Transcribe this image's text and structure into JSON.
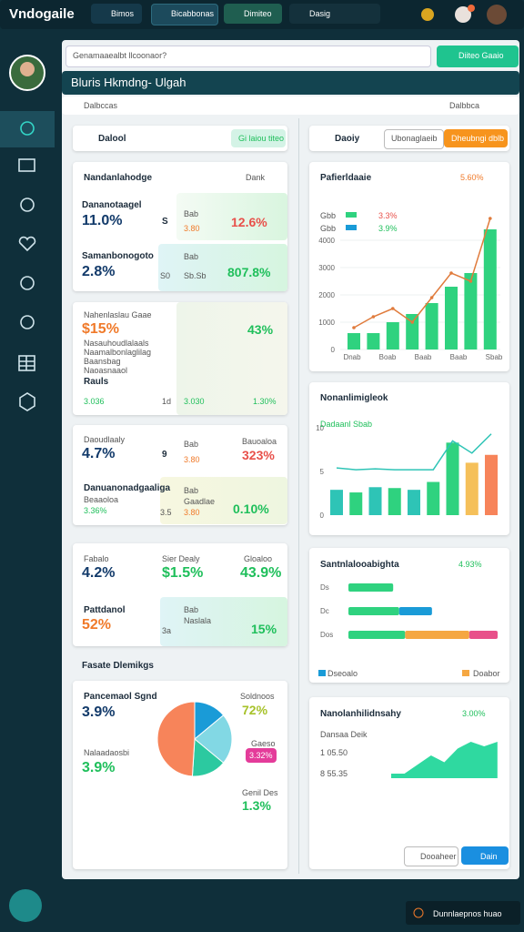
{
  "topbar": {
    "logo": "Vndogaile",
    "tabs": [
      "Bimos",
      "Bicabbonas",
      "Dimiteo"
    ],
    "search": "Dasig"
  },
  "search": {
    "placeholder": "Genamaaealbt llcoonaor?",
    "button": "Diiteo Gaaio"
  },
  "header": {
    "title": "Bluris Hkmdng- Ulgah",
    "subheader": "Dalbccas",
    "right_label": "Dalbbca"
  },
  "left_toolbar": {
    "label": "Dalool",
    "button": "Gi laiou titeo"
  },
  "right_toolbar": {
    "label": "Daoiy",
    "buttons": [
      "Ubonaglaeib",
      "Dheubngi dblb"
    ]
  },
  "card_kpi": {
    "title": "Nandanlahodge",
    "link": "Dank",
    "rows": [
      {
        "label": "Dananotaagel",
        "value": "11.0%",
        "mid": "S",
        "sub_label": "Bab",
        "sub_value": "3.80",
        "change": "12.6%"
      },
      {
        "label": "Samanbonogoto",
        "value": "2.8%",
        "mid": "S0",
        "sub_label": "Bab",
        "sub_value": "Sb.Sb",
        "change": "807.8%"
      }
    ]
  },
  "card_cost": {
    "title": "Nahenlaslau Gaae",
    "value": "$15%",
    "notes": [
      "Nasauhoudlalaals",
      "Naamalbonlaglilag",
      "Baansbag",
      "Naoasnaaol",
      "Rauls"
    ],
    "right": "43%",
    "footer": [
      "3.036",
      "1d",
      "3.030",
      "1.30%"
    ]
  },
  "card_mix": {
    "rows": [
      {
        "label": "Daoudlaaly",
        "value": "4.7%",
        "mid": "9",
        "sub_label": "Bab",
        "sub_value": "3.80",
        "right_label": "Bauoaloa",
        "change": "323%"
      },
      {
        "label": "Danuanonadgaaliga",
        "caption": "Beaaoloa",
        "value": "3.36%",
        "mid": "3.5",
        "sub_label": "Bab",
        "sub_label2": "Gaadlae",
        "sub_value": "3.80",
        "change": "0.10%"
      }
    ]
  },
  "card_rates": {
    "cols": [
      {
        "label": "Fabalo",
        "value": "4.2%"
      },
      {
        "label": "Sier Dealy",
        "value": "$1.5%"
      },
      {
        "label": "Gloaloo",
        "value": "43.9%"
      }
    ],
    "row": {
      "label": "Pattdanol",
      "value": "52%",
      "mid": "3a",
      "sub_label": "Bab",
      "sub_label2": "Naslala",
      "change": "15%"
    }
  },
  "section_title": "Fasate Dlemikgs",
  "card_share": {
    "label": "Pancemaol Sgnd",
    "value": "3.9%",
    "label2": "Nalaadaosbi",
    "value2": "3.9%",
    "pie": {
      "values": [
        14,
        22,
        15,
        49
      ],
      "colors": [
        "#1a9bd7",
        "#82d8e4",
        "#2cc9a0",
        "#f7845a"
      ]
    },
    "right": [
      {
        "label": "Soldnoos",
        "value": "72%"
      },
      {
        "label": "Gaeso",
        "value": "3.32%"
      },
      {
        "label": "Genil Des",
        "value": "1.3%"
      }
    ]
  },
  "trend": {
    "title": "Pafierldaaie",
    "badge": "5.60%",
    "legend": [
      {
        "name": "Gbb",
        "value": "3.3%"
      },
      {
        "name": "Gbb",
        "value": "3.9%"
      }
    ],
    "bars": [
      600,
      600,
      1000,
      1300,
      1700,
      2300,
      2800,
      4400
    ],
    "line": [
      800,
      1200,
      1500,
      1000,
      1900,
      2800,
      2500,
      4800
    ],
    "bar_color": "#2fd27f",
    "line_color": "#e07b3c",
    "ylim": [
      0,
      5000
    ],
    "yticks": [
      0,
      1000,
      2000,
      3000,
      4000
    ],
    "x_labels": [
      "Dnab",
      "Boab",
      "Baab",
      "Baab",
      "Sbab"
    ]
  },
  "mixbars": {
    "title": "Nonanlimigleok",
    "legend": "Dadaanl Sbab",
    "values": [
      2.9,
      2.6,
      3.2,
      3.1,
      2.9,
      3.8,
      8.3,
      6.0,
      6.9
    ],
    "colors": [
      "#2ec4b6",
      "#2fd27f",
      "#2ec4b6",
      "#2fd27f",
      "#2ec4b6",
      "#2fd27f",
      "#2fd27f",
      "#f5c05a",
      "#f7845a"
    ],
    "line": [
      5.4,
      5.2,
      5.3,
      5.2,
      5.2,
      5.2,
      8.5,
      7.1,
      9.3
    ],
    "line_color": "#2ec4b6",
    "ylim": [
      0,
      10
    ],
    "yticks": [
      0,
      5,
      10
    ]
  },
  "hbars": {
    "title": "Santnlalooabighta",
    "badge": "4.93%",
    "row_labels": [
      "Ds",
      "Dc",
      "Dos"
    ],
    "series": [
      {
        "color": "#2fd27f",
        "values": [
          30,
          34,
          38
        ]
      },
      {
        "color": "#1a9bd7",
        "values": [
          0,
          22,
          0
        ]
      },
      {
        "color": "#f5a742",
        "values": [
          0,
          0,
          43
        ]
      },
      {
        "color": "#e8508a",
        "values": [
          0,
          0,
          19
        ]
      }
    ],
    "xlim": [
      0,
      100
    ],
    "legend": [
      {
        "name": "Dseoalo",
        "color": "#1a9bd7"
      },
      {
        "name": "Doabor",
        "color": "#f5a742"
      }
    ]
  },
  "area": {
    "title": "Nanolanhilidnsahy",
    "badge": "3.00%",
    "sublabel": "Dansaa Deik",
    "labels": [
      "1 05.50",
      "8 55.35"
    ],
    "values": [
      1,
      1,
      3,
      5,
      3.5,
      6.5,
      8,
      7,
      8
    ],
    "color": "#2fd9a0",
    "ylim": [
      0,
      10
    ],
    "buttons": [
      "Dooaheer",
      "Dain"
    ]
  },
  "footer": "Dunnlaepnos huao"
}
